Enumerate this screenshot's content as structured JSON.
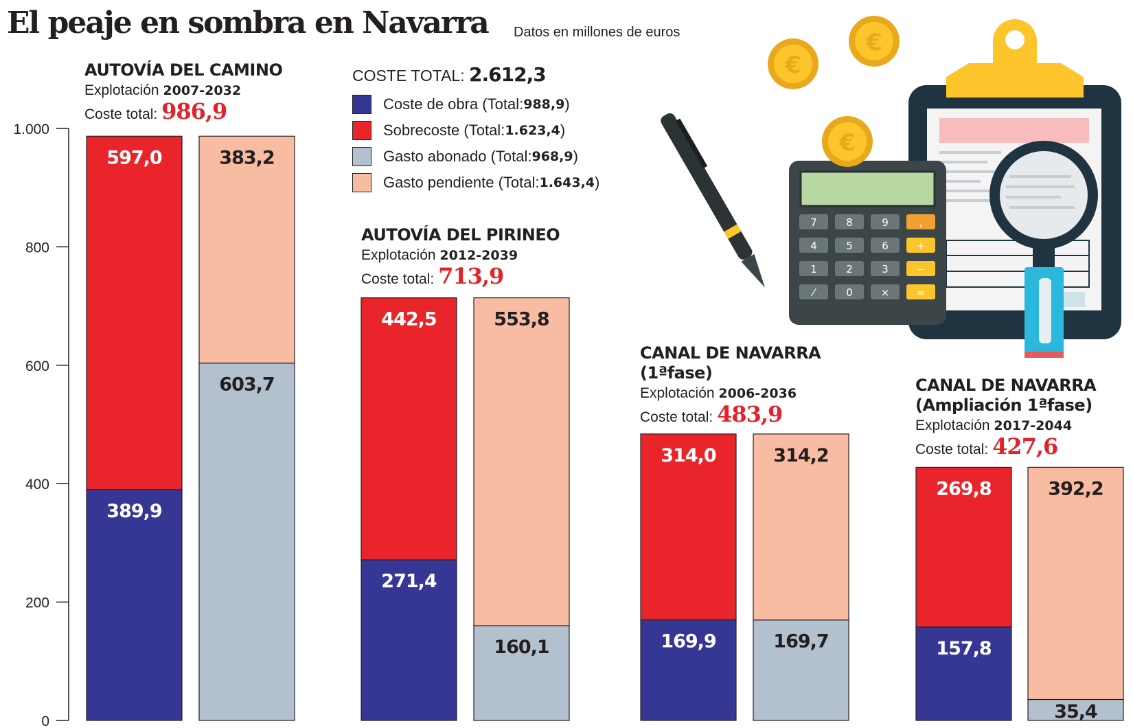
{
  "header": {
    "title": "El peaje en sombra en Navarra",
    "subtitle": "Datos en millones de euros"
  },
  "legend": {
    "total_label": "COSTE TOTAL:",
    "total_value": "2.612,3",
    "items": [
      {
        "label": "Coste de obra (Total: ",
        "total": "988,9",
        "close": ")",
        "color": "#363795"
      },
      {
        "label": "Sobrecoste (Total: ",
        "total": "1.623,4",
        "close": ")",
        "color": "#e9242b"
      },
      {
        "label": "Gasto abonado (Total: ",
        "total": "968,9",
        "close": ")",
        "color": "#b3c0cd"
      },
      {
        "label": "Gasto pendiente (Total: ",
        "total": "1.643,4",
        "close": ")",
        "color": "#f8bca3"
      }
    ]
  },
  "groups": [
    {
      "title1": "AUTOVÍA DEL CAMINO",
      "title2": "",
      "expl_label": "Explotación ",
      "expl_years": "2007-2032",
      "cost_label": "Coste total: ",
      "cost_value": "986,9"
    },
    {
      "title1": "AUTOVÍA DEL PIRINEO",
      "title2": "",
      "expl_label": "Explotación ",
      "expl_years": "2012-2039",
      "cost_label": "Coste total: ",
      "cost_value": "713,9"
    },
    {
      "title1": "CANAL DE NAVARRA",
      "title2": "(1ªfase)",
      "expl_label": "Explotación ",
      "expl_years": "2006-2036",
      "cost_label": "Coste total: ",
      "cost_value": "483,9"
    },
    {
      "title1": "CANAL DE NAVARRA",
      "title2": "(Ampliación 1ªfase)",
      "expl_label": "Explotación ",
      "expl_years": "2017-2044",
      "cost_label": "Coste total: ",
      "cost_value": "427,6"
    }
  ],
  "chart_data": {
    "type": "bar",
    "stacked": true,
    "title": "El peaje en sombra en Navarra",
    "subtitle": "Datos en millones de euros",
    "ylim": [
      0,
      1000
    ],
    "yticks": [
      0,
      200,
      400,
      600,
      800,
      1000
    ],
    "ytick_labels": [
      "0",
      "200",
      "400",
      "600",
      "800",
      "1.000"
    ],
    "grid": false,
    "categories": [
      "AUTOVÍA DEL CAMINO",
      "AUTOVÍA DEL PIRINEO",
      "CANAL DE NAVARRA (1ªfase)",
      "CANAL DE NAVARRA (Ampliación 1ªfase)"
    ],
    "bars": [
      {
        "group": 0,
        "segments": [
          {
            "series": "Coste de obra",
            "value": 389.9,
            "label": "389,9"
          },
          {
            "series": "Sobrecoste",
            "value": 597.0,
            "label": "597,0"
          }
        ]
      },
      {
        "group": 0,
        "segments": [
          {
            "series": "Gasto abonado",
            "value": 603.7,
            "label": "603,7"
          },
          {
            "series": "Gasto pendiente",
            "value": 383.2,
            "label": "383,2"
          }
        ]
      },
      {
        "group": 1,
        "segments": [
          {
            "series": "Coste de obra",
            "value": 271.4,
            "label": "271,4"
          },
          {
            "series": "Sobrecoste",
            "value": 442.5,
            "label": "442,5"
          }
        ]
      },
      {
        "group": 1,
        "segments": [
          {
            "series": "Gasto abonado",
            "value": 160.1,
            "label": "160,1"
          },
          {
            "series": "Gasto pendiente",
            "value": 553.8,
            "label": "553,8"
          }
        ]
      },
      {
        "group": 2,
        "segments": [
          {
            "series": "Coste de obra",
            "value": 169.9,
            "label": "169,9"
          },
          {
            "series": "Sobrecoste",
            "value": 314.0,
            "label": "314,0"
          }
        ]
      },
      {
        "group": 2,
        "segments": [
          {
            "series": "Gasto abonado",
            "value": 169.7,
            "label": "169,7"
          },
          {
            "series": "Gasto pendiente",
            "value": 314.2,
            "label": "314,2"
          }
        ]
      },
      {
        "group": 3,
        "segments": [
          {
            "series": "Coste de obra",
            "value": 157.8,
            "label": "157,8"
          },
          {
            "series": "Sobrecoste",
            "value": 269.8,
            "label": "269,8"
          }
        ]
      },
      {
        "group": 3,
        "segments": [
          {
            "series": "Gasto abonado",
            "value": 35.4,
            "label": "35,4"
          },
          {
            "series": "Gasto pendiente",
            "value": 392.2,
            "label": "392,2"
          }
        ]
      }
    ],
    "series_colors": {
      "Coste de obra": "#363795",
      "Sobrecoste": "#e9242b",
      "Gasto abonado": "#b3c0cd",
      "Gasto pendiente": "#f8bca3"
    },
    "label_colors": {
      "Coste de obra": "#ffffff",
      "Sobrecoste": "#ffffff",
      "Gasto abonado": "#231f20",
      "Gasto pendiente": "#231f20"
    }
  },
  "illustration": {
    "icons": [
      "euro-coin-icon",
      "pen-icon",
      "calculator-icon",
      "clipboard-icon",
      "magnifier-icon"
    ],
    "calculator_keys": [
      "7",
      "8",
      "9",
      ",",
      "4",
      "5",
      "6",
      "+",
      "1",
      "2",
      "3",
      "−",
      "⁄",
      "0",
      "×",
      "="
    ]
  }
}
